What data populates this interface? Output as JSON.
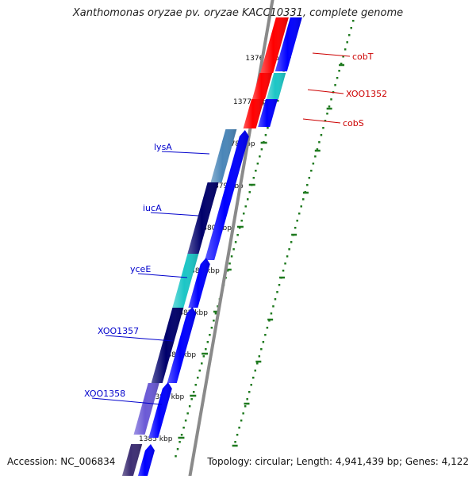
{
  "title": "Xanthomonas oryzae pv. oryzae KACC10331, complete genome",
  "footer": {
    "accession": "Accession: NC_006834",
    "topology": "Topology: circular; Length: 4,941,439 bp; Genes: 4,122"
  },
  "colors": {
    "reverse_red": "#ff0000",
    "reverse_blue": "#0000ff",
    "forward_blue": "#0000ff",
    "dark_navy": "#00006b",
    "steel_blue": "#4a86b8",
    "cyan": "#1cc6c6",
    "purple": "#6b5ad6",
    "dark_purple": "#3d2e73",
    "backbone": "#8a8a8a",
    "tick_green": "#1f7a1f",
    "blue_label": "#0000cc",
    "red_label": "#cc0000"
  },
  "ticks": [
    {
      "label": "1376 kbp"
    },
    {
      "label": "1377 kbp"
    },
    {
      "label": "1378 kbp"
    },
    {
      "label": "1379 kbp"
    },
    {
      "label": "1380 kbp"
    },
    {
      "label": "1381 kbp"
    },
    {
      "label": "1382 kbp"
    },
    {
      "label": "1383 kbp"
    },
    {
      "label": "1384 kbp"
    },
    {
      "label": "1385 kbp"
    }
  ],
  "gene_labels_left": [
    {
      "name": "lysA"
    },
    {
      "name": "iucA"
    },
    {
      "name": "yceE"
    },
    {
      "name": "XOO1357"
    },
    {
      "name": "XOO1358"
    }
  ],
  "gene_labels_right": [
    {
      "name": "cobT"
    },
    {
      "name": "XOO1352"
    },
    {
      "name": "cobS"
    }
  ]
}
